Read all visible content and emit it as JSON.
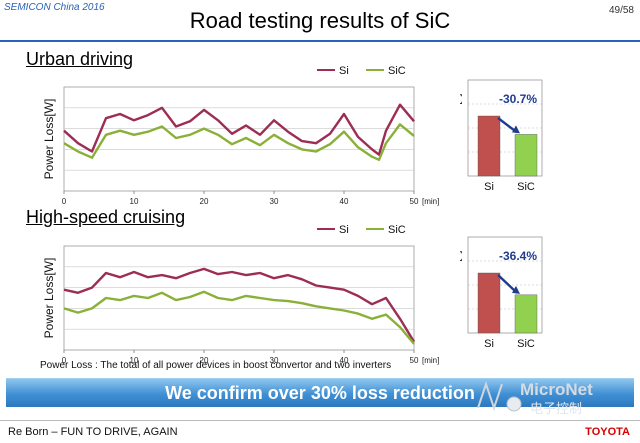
{
  "header": {
    "conference": "SEMICON China 2016",
    "page_number": "49/58",
    "title": "Road testing results of SiC"
  },
  "colors": {
    "si": "#9c2d54",
    "sic": "#8ab038",
    "bar_si": "#c0504d",
    "bar_sic": "#92d050",
    "arrow": "#1f3d8f",
    "accent": "#2a62b8",
    "toyota": "#d80000"
  },
  "sections": {
    "urban": {
      "title": "Urban driving",
      "reduction_label": "-30.7%"
    },
    "high_speed": {
      "title": "High-speed cruising",
      "reduction_label": "-36.4%"
    }
  },
  "footnote": "Power Loss : The total of all power devices in boost convertor  and two inverters",
  "banner": {
    "text": "We confirm over 30% loss reduction"
  },
  "watermark": {
    "brand": "MicroNet",
    "cn": "电子控制"
  },
  "footer": {
    "slogan": "Re Born – FUN TO DRIVE, AGAIN",
    "brand": "TOYOTA"
  },
  "chart_data": [
    {
      "type": "line",
      "title": "Urban driving",
      "xlabel": "[min]",
      "ylabel": "Power Loss[W]",
      "xlim": [
        0,
        50
      ],
      "x_ticks": [
        "0",
        "10",
        "20",
        "30",
        "40",
        "50"
      ],
      "y_ticks_labeled": false,
      "grid": true,
      "legend": "top-right",
      "series": [
        {
          "name": "Si",
          "x": [
            0,
            2,
            4,
            6,
            8,
            10,
            12,
            14,
            16,
            18,
            20,
            22,
            24,
            26,
            28,
            30,
            32,
            34,
            36,
            38,
            40,
            42,
            44,
            45,
            46,
            48,
            50
          ],
          "values": [
            58,
            46,
            38,
            70,
            74,
            68,
            73,
            80,
            62,
            67,
            78,
            68,
            55,
            63,
            54,
            68,
            57,
            48,
            46,
            55,
            74,
            52,
            40,
            35,
            58,
            83,
            67
          ]
        },
        {
          "name": "SiC",
          "x": [
            0,
            2,
            4,
            6,
            8,
            10,
            12,
            14,
            16,
            18,
            20,
            22,
            24,
            26,
            28,
            30,
            32,
            34,
            36,
            38,
            40,
            42,
            44,
            45,
            46,
            48,
            50
          ],
          "values": [
            46,
            38,
            32,
            54,
            58,
            54,
            57,
            62,
            51,
            54,
            60,
            54,
            45,
            51,
            44,
            54,
            46,
            40,
            38,
            45,
            57,
            42,
            33,
            30,
            46,
            64,
            53
          ]
        }
      ]
    },
    {
      "type": "bar",
      "title": "Urban driving",
      "ylabel": "Power Loss [J]",
      "categories": [
        "Si",
        "SiC"
      ],
      "values": [
        100,
        69.3
      ],
      "annotation": "-30.7%"
    },
    {
      "type": "line",
      "title": "High-speed cruising",
      "xlabel": "[min]",
      "ylabel": "Power Loss[W]",
      "xlim": [
        0,
        50
      ],
      "x_ticks": [
        "0",
        "10",
        "20",
        "30",
        "40",
        "50"
      ],
      "y_ticks_labeled": false,
      "grid": true,
      "legend": "top-right",
      "series": [
        {
          "name": "Si",
          "x": [
            0,
            2,
            4,
            6,
            8,
            10,
            12,
            14,
            16,
            18,
            20,
            22,
            24,
            26,
            28,
            30,
            32,
            34,
            36,
            38,
            40,
            42,
            44,
            46,
            48,
            50
          ],
          "values": [
            58,
            55,
            60,
            74,
            70,
            75,
            70,
            72,
            69,
            74,
            78,
            73,
            75,
            72,
            74,
            69,
            72,
            68,
            62,
            60,
            58,
            52,
            44,
            50,
            30,
            8
          ]
        },
        {
          "name": "SiC",
          "x": [
            0,
            2,
            4,
            6,
            8,
            10,
            12,
            14,
            16,
            18,
            20,
            22,
            24,
            26,
            28,
            30,
            32,
            34,
            36,
            38,
            40,
            42,
            44,
            46,
            48,
            50
          ],
          "values": [
            40,
            36,
            40,
            50,
            48,
            52,
            50,
            55,
            48,
            51,
            56,
            50,
            48,
            52,
            50,
            48,
            47,
            45,
            42,
            40,
            38,
            35,
            30,
            34,
            22,
            6
          ]
        }
      ]
    },
    {
      "type": "bar",
      "title": "High-speed cruising",
      "ylabel": "Power Loss [J]",
      "categories": [
        "Si",
        "SiC"
      ],
      "values": [
        100,
        63.6
      ],
      "annotation": "-36.4%"
    }
  ]
}
